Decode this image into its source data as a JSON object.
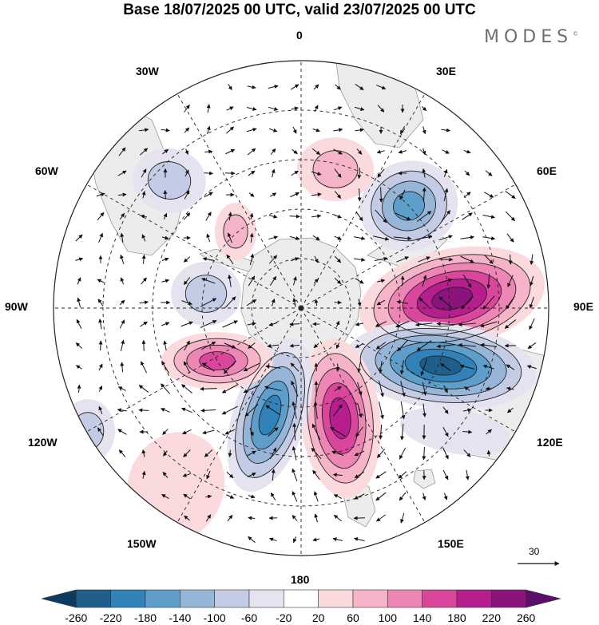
{
  "title": "Base 18/07/2025 00 UTC, valid 23/07/2025 00 UTC",
  "logo": "MODES",
  "logo_mark": "©",
  "projection": "south polar stereographic",
  "longitude_labels": {
    "lon_0": "0",
    "lon_30e": "30E",
    "lon_60e": "60E",
    "lon_90e": "90E",
    "lon_120e": "120E",
    "lon_150e": "150E",
    "lon_180": "180",
    "lon_150w": "150W",
    "lon_120w": "120W",
    "lon_90w": "90W",
    "lon_60w": "60W",
    "lon_30w": "30W"
  },
  "vector_scale_label": "30",
  "colorbar": {
    "levels": [
      "-260",
      "-220",
      "-180",
      "-140",
      "-100",
      "-60",
      "-20",
      "20",
      "60",
      "100",
      "140",
      "180",
      "220",
      "260"
    ],
    "colors": [
      "#0d3a5e",
      "#1f5f8b",
      "#3182b8",
      "#5e9ecb",
      "#97b5d6",
      "#c3cce4",
      "#e5e3f0",
      "#ffffff",
      "#fadadd",
      "#f5b4c8",
      "#ed86b5",
      "#d9469c",
      "#b51e8c",
      "#8a147c",
      "#5a0f6b"
    ]
  },
  "land_color": "#ececec",
  "anomaly_centers": [
    {
      "name": "negative center south of Africa",
      "value": -180
    },
    {
      "name": "positive center south-west Australia",
      "value": 240
    },
    {
      "name": "negative center south of Australia",
      "value": -240
    },
    {
      "name": "positive center south of New Zealand",
      "value": 200
    },
    {
      "name": "negative center south-west Pacific",
      "value": -180
    },
    {
      "name": "positive center Amundsen Sea",
      "value": 160
    }
  ]
}
